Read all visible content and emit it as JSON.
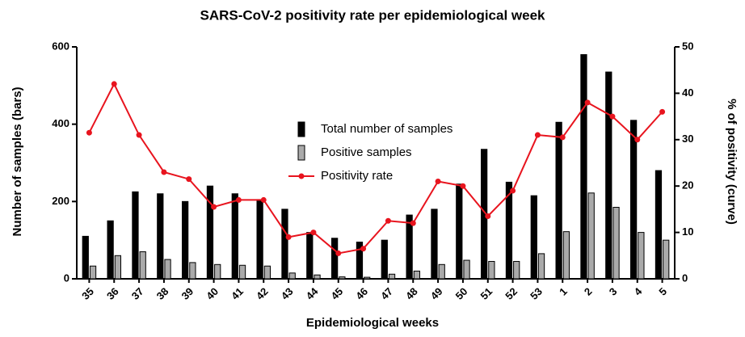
{
  "chart_data": {
    "type": "bar_line",
    "title": "SARS-CoV-2 positivity rate per epidemiological week",
    "x_label": "Epidemiological weeks",
    "y_label": "Number of samples (bars)",
    "y2_label": "% of positivity (curve)",
    "categories": [
      "35",
      "36",
      "37",
      "38",
      "39",
      "40",
      "41",
      "42",
      "43",
      "44",
      "45",
      "46",
      "47",
      "48",
      "49",
      "50",
      "51",
      "52",
      "53",
      "1",
      "2",
      "3",
      "4",
      "5"
    ],
    "series": [
      {
        "name": "Total number of samples",
        "type": "bar",
        "color": "#000000",
        "values": [
          110,
          150,
          225,
          220,
          200,
          240,
          220,
          205,
          180,
          120,
          105,
          95,
          100,
          165,
          180,
          245,
          335,
          250,
          215,
          405,
          580,
          535,
          410,
          280
        ]
      },
      {
        "name": "Positive samples",
        "type": "bar",
        "color": "#aaaaaa",
        "values": [
          33,
          60,
          70,
          50,
          42,
          37,
          35,
          33,
          15,
          10,
          5,
          4,
          12,
          20,
          37,
          48,
          45,
          45,
          65,
          122,
          222,
          185,
          120,
          100
        ]
      },
      {
        "name": "Positivity rate",
        "type": "line",
        "color": "#e8141e",
        "axis": "y2",
        "values": [
          31.5,
          42,
          31,
          23,
          21.5,
          15.5,
          17,
          17,
          9,
          10,
          5.5,
          6.5,
          12.5,
          12,
          21,
          20,
          13.5,
          19,
          31,
          30.5,
          38,
          35,
          30,
          36
        ]
      }
    ],
    "ylim": [
      0,
      600
    ],
    "yticks": [
      0,
      200,
      400,
      600
    ],
    "y2lim": [
      0,
      50
    ],
    "y2ticks": [
      0,
      10,
      20,
      30,
      40,
      50
    ],
    "legend": "top-center",
    "grid": false
  }
}
